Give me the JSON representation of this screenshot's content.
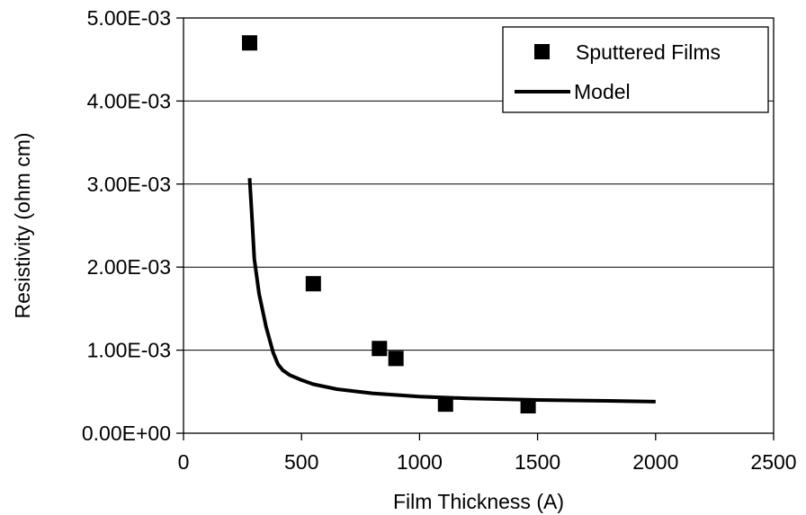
{
  "chart_data": {
    "type": "scatter",
    "title": "",
    "xlabel": "Film Thickness (A)",
    "ylabel": "Resistivity (ohm cm)",
    "xlim": [
      0,
      2500
    ],
    "ylim": [
      0,
      0.005
    ],
    "x_ticks": [
      0,
      500,
      1000,
      1500,
      2000,
      2500
    ],
    "x_tick_labels": [
      "0",
      "500",
      "1000",
      "1500",
      "2000",
      "2500"
    ],
    "y_ticks": [
      0,
      0.001,
      0.002,
      0.003,
      0.004,
      0.005
    ],
    "y_tick_labels": [
      "0.00E+00",
      "1.00E-03",
      "2.00E-03",
      "3.00E-03",
      "4.00E-03",
      "5.00E-03"
    ],
    "grid": "horizontal",
    "legend_position": "top-right",
    "series": [
      {
        "name": "Sputtered Films",
        "type": "scatter",
        "marker": "square",
        "color": "#000000",
        "points": [
          [
            280,
            0.0047
          ],
          [
            550,
            0.0018
          ],
          [
            830,
            0.00102
          ],
          [
            900,
            0.0009
          ],
          [
            1110,
            0.00035
          ],
          [
            1460,
            0.00033
          ]
        ]
      },
      {
        "name": "Model",
        "type": "line",
        "color": "#000000",
        "points": [
          [
            280,
            0.00307
          ],
          [
            290,
            0.0026
          ],
          [
            300,
            0.0021
          ],
          [
            320,
            0.00168
          ],
          [
            350,
            0.00128
          ],
          [
            380,
            0.00097
          ],
          [
            400,
            0.00083
          ],
          [
            420,
            0.00076
          ],
          [
            450,
            0.0007
          ],
          [
            500,
            0.00064
          ],
          [
            550,
            0.00059
          ],
          [
            650,
            0.00053
          ],
          [
            800,
            0.00048
          ],
          [
            1000,
            0.00044
          ],
          [
            1200,
            0.00042
          ],
          [
            1500,
            0.0004
          ],
          [
            1800,
            0.00039
          ],
          [
            2000,
            0.00038
          ]
        ]
      }
    ]
  }
}
